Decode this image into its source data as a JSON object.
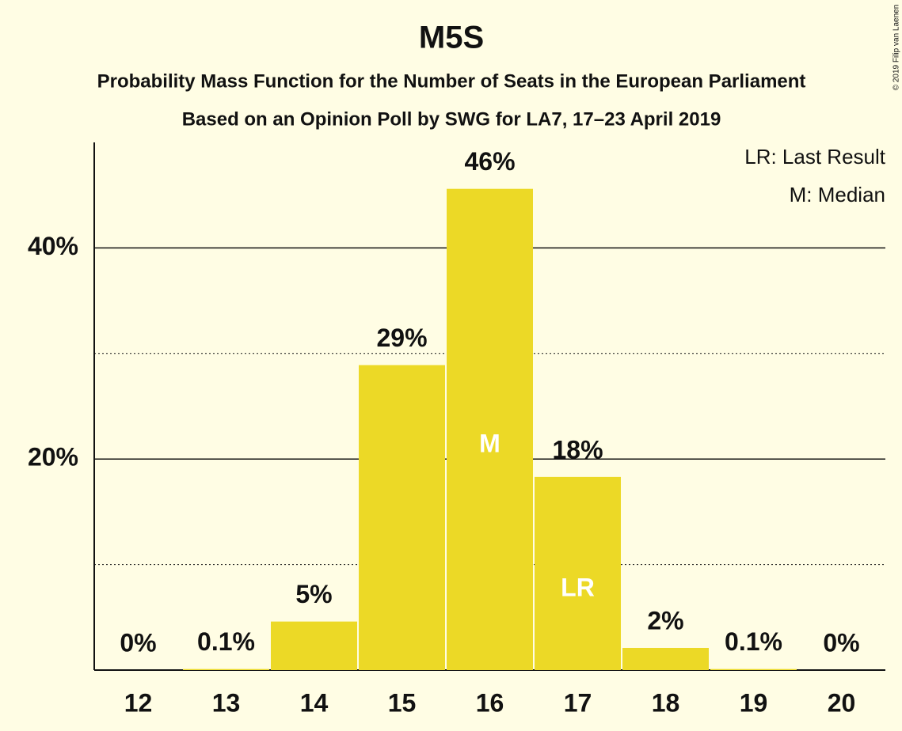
{
  "chart_data": {
    "type": "bar",
    "title": "M5S",
    "subtitle": "Probability Mass Function for the Number of Seats in the European Parliament",
    "subtitle2": "Based on an Opinion Poll by SWG for LA7, 17–23 April 2019",
    "copyright": "© 2019 Filip van Laenen",
    "notes": [
      "LR: Last Result",
      "M: Median"
    ],
    "categories": [
      "12",
      "13",
      "14",
      "15",
      "16",
      "17",
      "18",
      "19",
      "20"
    ],
    "values": [
      0,
      0.1,
      4.6,
      28.9,
      45.6,
      18.3,
      2.1,
      0.1,
      0
    ],
    "value_labels": [
      "0%",
      "0.1%",
      "5%",
      "29%",
      "46%",
      "18%",
      "2%",
      "0.1%",
      "0%"
    ],
    "bar_annotations": [
      null,
      null,
      null,
      null,
      "M",
      "LR",
      null,
      null,
      null
    ],
    "color": "#ecd926",
    "ylim": [
      0,
      50
    ],
    "yticks": [
      {
        "value": 20,
        "label": "20%"
      },
      {
        "value": 40,
        "label": "40%"
      }
    ],
    "minor_yticks": [
      10,
      30
    ],
    "grid": true
  }
}
